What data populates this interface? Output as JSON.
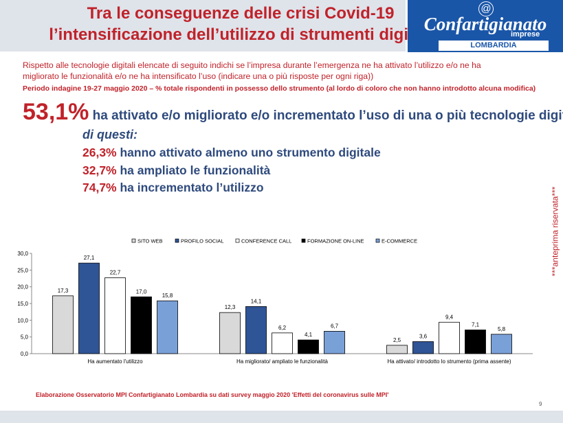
{
  "header": {
    "title_line1": "Tra le conseguenze delle crisi Covid-19",
    "title_line2": "l’intensificazione dell’utilizzo di strumenti digitali"
  },
  "logo": {
    "symbol": "@",
    "name": "Confartigianato",
    "sub": "imprese",
    "region": "LOMBARDIA"
  },
  "intro": {
    "question_line1": "Rispetto alle tecnologie digitali elencate di seguito indichi se l’impresa durante l’emergenza ne ha attivato l’utilizzo e/o ne ha",
    "question_line2": "migliorato le funzionalità e/o ne ha intensificato l’uso (indicare una o più risposte per ogni riga))",
    "period": "Periodo indagine 19-27 maggio 2020 – % totale rispondenti in possesso dello strumento  (al lordo di coloro che non hanno introdotto alcuna modifica)"
  },
  "highlight": {
    "pct": "53,1%",
    "text": " ha attivato e/o migliorato e/o incrementato l’uso di una o più tecnologie digitali",
    "sub_head": "di questi:",
    "stats": [
      {
        "pct": "26,3%",
        "text": " hanno attivato almeno uno strumento digitale"
      },
      {
        "pct": "32,7%",
        "text": " ha ampliato le funzionalità"
      },
      {
        "pct": "74,7%",
        "text": " ha incrementato l’utilizzo"
      }
    ]
  },
  "side_note": "***anteprima riservata***",
  "chart_data": {
    "type": "bar",
    "categories": [
      "Ha aumentato  l'utilizzo",
      "Ha migliorato/ ampliato le funzionalità",
      "Ha attivato/ introdotto lo strumento (prima assente)"
    ],
    "series": [
      {
        "name": "SITO WEB",
        "color": "#d9d9d9",
        "values": [
          17.3,
          12.3,
          2.5
        ],
        "labels": [
          "17,3",
          "12,3",
          "2,5"
        ]
      },
      {
        "name": "PROFILO SOCIAL",
        "color": "#2f5597",
        "values": [
          27.1,
          14.1,
          3.6
        ],
        "labels": [
          "27,1",
          "14,1",
          "3,6"
        ]
      },
      {
        "name": "CONFERENCE CALL",
        "color": "#ffffff",
        "values": [
          22.7,
          6.2,
          9.4
        ],
        "labels": [
          "22,7",
          "6,2",
          "9,4"
        ]
      },
      {
        "name": "FORMAZIONE ON-LINE",
        "color": "#000000",
        "values": [
          17.0,
          4.1,
          7.1
        ],
        "labels": [
          "17,0",
          "4,1",
          "7,1"
        ]
      },
      {
        "name": "E-COMMERCE",
        "color": "#7aa0d8",
        "values": [
          15.8,
          6.7,
          5.8
        ],
        "labels": [
          "15,8",
          "6,7",
          "5,8"
        ]
      }
    ],
    "ylim": [
      0,
      30
    ],
    "yticks": [
      "0,0",
      "5,0",
      "10,0",
      "15,0",
      "20,0",
      "25,0",
      "30,0"
    ],
    "legend": "top",
    "grid": false
  },
  "footer": {
    "source": "Elaborazione Osservatorio MPI Confartigianato Lombardia su dati survey maggio 2020  'Effetti del coronavirus sulle MPI'",
    "page": "9"
  }
}
